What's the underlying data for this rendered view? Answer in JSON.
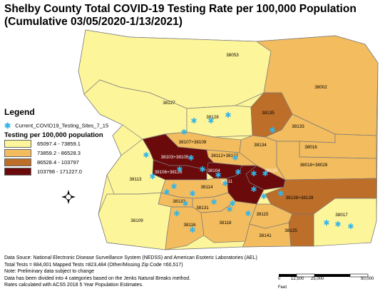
{
  "title_line1": "Shelby County Total COVID-19 Testing Rate per 100,000 Population",
  "title_line2": "(Cumulative 03/05/2020-1/13/2021)",
  "legend": {
    "title": "Legend",
    "sites_label": "Current_COVID19_Testing_Sites_7_15",
    "rate_title": "Testing per 100,000 population",
    "classes": [
      {
        "label": "65097.4 - 73859.1",
        "color": "#fdf59a"
      },
      {
        "label": "73859.2 - 86528.3",
        "color": "#f3bc5e"
      },
      {
        "label": "86528.4 - 103797",
        "color": "#bd6e29"
      },
      {
        "label": "103798 - 171227.0",
        "color": "#6b0a0a"
      }
    ]
  },
  "site_color": "#33b5e8",
  "zips": [
    {
      "label": "38053",
      "class": 0
    },
    {
      "label": "38002",
      "class": 1
    },
    {
      "label": "38127",
      "class": 0
    },
    {
      "label": "38128",
      "class": 0
    },
    {
      "label": "38135",
      "class": 2
    },
    {
      "label": "38133",
      "class": 1
    },
    {
      "label": "38016",
      "class": 1
    },
    {
      "label": "38107+38108",
      "class": 1
    },
    {
      "label": "38103+38105",
      "class": 3
    },
    {
      "label": "38112+38122",
      "class": 1
    },
    {
      "label": "38134",
      "class": 1
    },
    {
      "label": "38018+38028",
      "class": 1
    },
    {
      "label": "38106+38126",
      "class": 3
    },
    {
      "label": "38104",
      "class": 3
    },
    {
      "label": "38120",
      "class": 3
    },
    {
      "label": "38113",
      "class": 0
    },
    {
      "label": "38114",
      "class": 1
    },
    {
      "label": "38111",
      "class": 3
    },
    {
      "label": "38138+38139",
      "class": 2
    },
    {
      "label": "38132",
      "class": 1
    },
    {
      "label": "38131",
      "class": 1
    },
    {
      "label": "38109",
      "class": 0
    },
    {
      "label": "38116",
      "class": 1
    },
    {
      "label": "38118",
      "class": 1
    },
    {
      "label": "38115",
      "class": 1
    },
    {
      "label": "38017",
      "class": 0
    },
    {
      "label": "38141",
      "class": 1
    },
    {
      "label": "38125",
      "class": 2
    }
  ],
  "notes": [
    "Data Souce: National Electronic Disease Surveillance System (NEDSS) and American Esoteric Laboratories (AEL)",
    "Total Tests = 884,001 Mapped Tests =823,484 (Other/Missing Zip Code =60,517)",
    "Note: Preliminary data subject to change",
    "Data has been divided into 4 categories based on the Jenks Natural Breaks method.",
    "Rates calculated with ACS5 2018 5 Year Population Estimates."
  ],
  "scale": {
    "ticks": [
      "0",
      "12,500",
      "25,000",
      "50,000"
    ],
    "unit": "Feet"
  }
}
